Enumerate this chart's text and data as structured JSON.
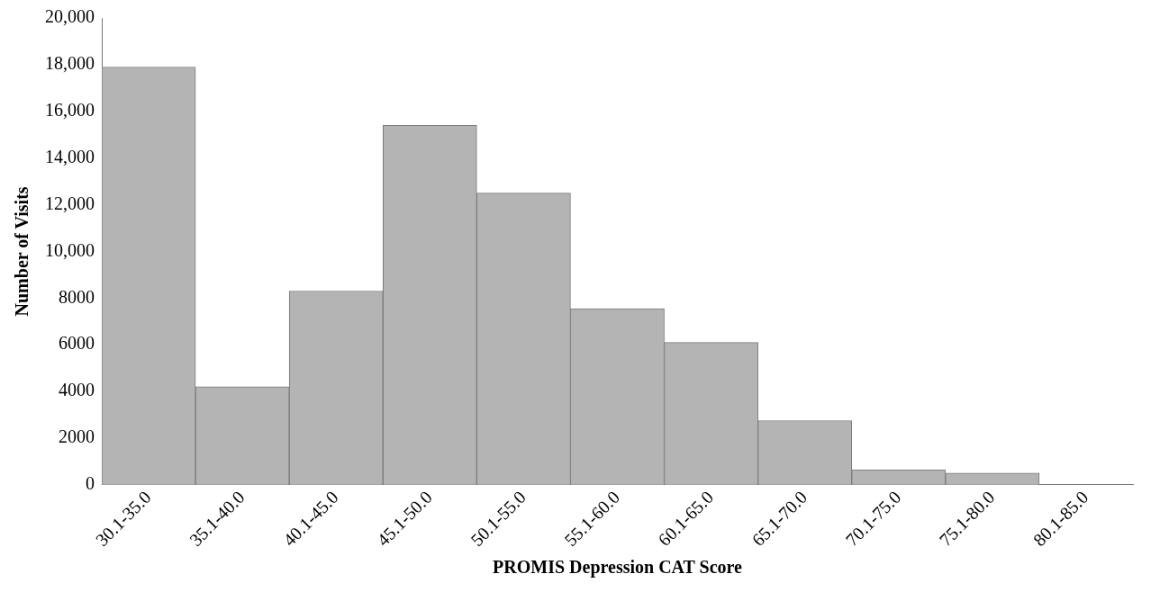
{
  "chart_data": {
    "type": "bar",
    "xlabel": "PROMIS Depression CAT Score",
    "ylabel": "Number of Visits",
    "categories": [
      "30.1-35.0",
      "35.1-40.0",
      "40.1-45.0",
      "45.1-50.0",
      "50.1-55.0",
      "55.1-60.0",
      "60.1-65.0",
      "65.1-70.0",
      "70.1-75.0",
      "75.1-80.0",
      "80.1-85.0"
    ],
    "values": [
      17900,
      4200,
      8300,
      15400,
      12500,
      7550,
      6100,
      2750,
      650,
      500,
      null
    ],
    "color": "#b4b4b4",
    "ylim": [
      0,
      20000
    ],
    "yticks": [
      0,
      2000,
      4000,
      6000,
      8000,
      {
        "value": 10000,
        "label": "10,000"
      },
      {
        "value": 12000,
        "label": "12,000"
      },
      {
        "value": 14000,
        "label": "14,000"
      },
      {
        "value": 16000,
        "label": "16,000"
      },
      {
        "value": 18000,
        "label": "18,000"
      },
      {
        "value": 20000,
        "label": "20,000"
      }
    ],
    "grid": false,
    "legend": false
  }
}
